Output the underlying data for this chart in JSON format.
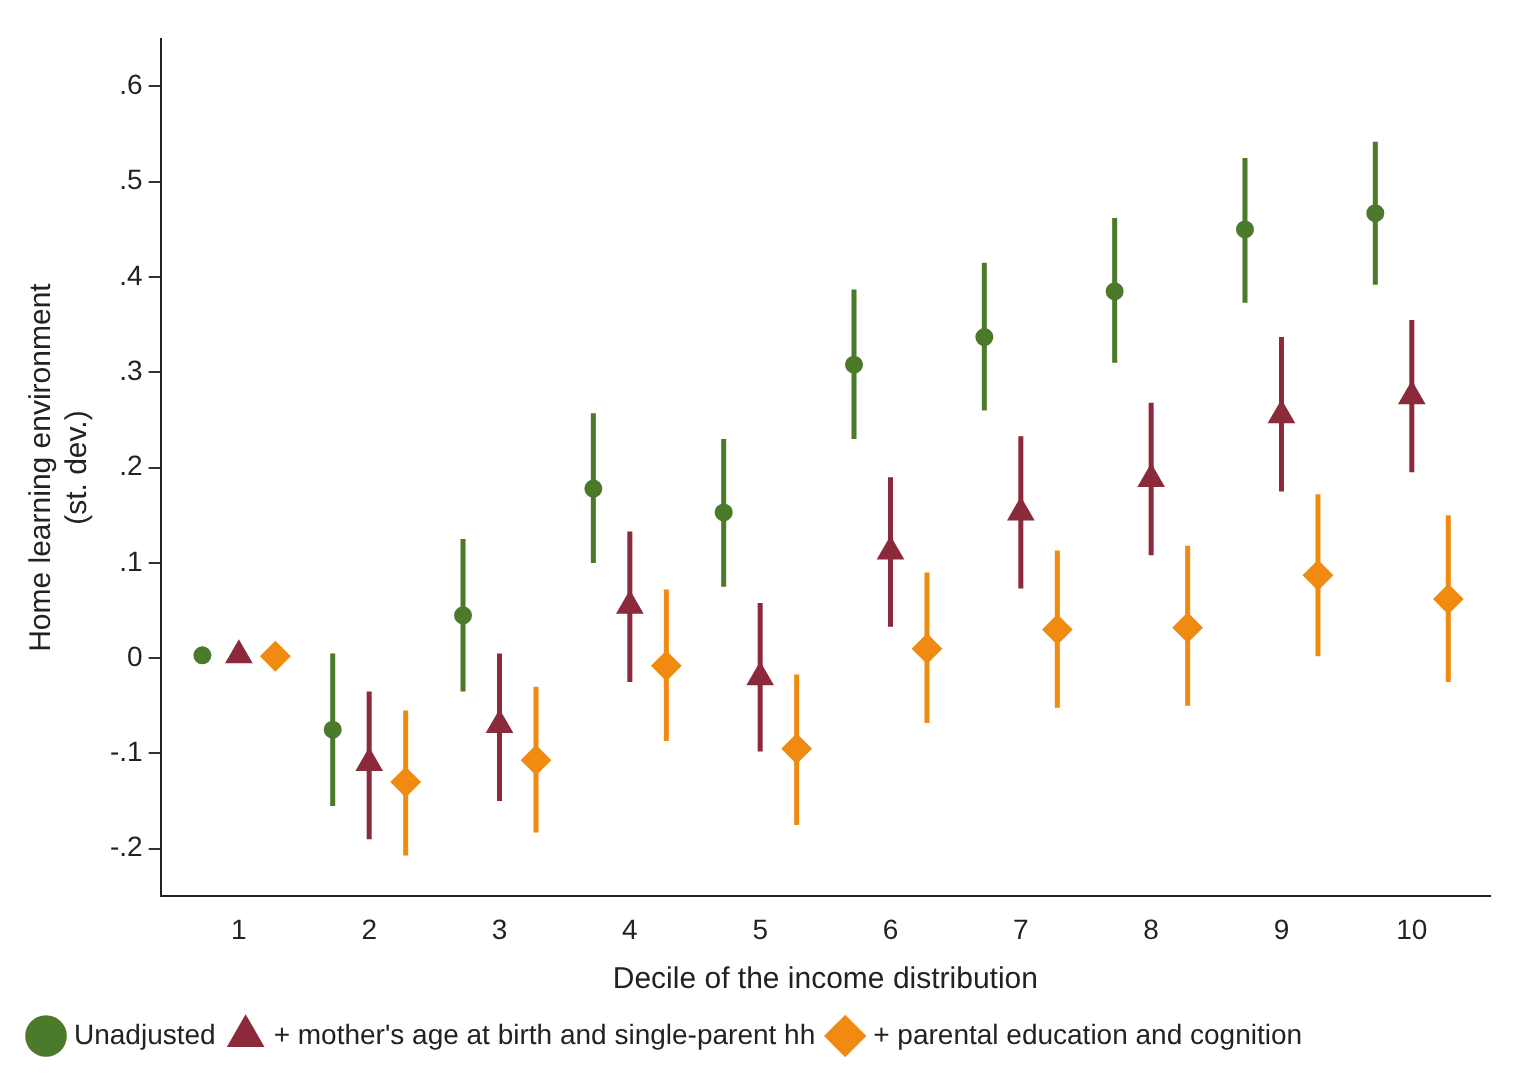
{
  "chart_data": {
    "type": "scatter",
    "xlabel": "Decile of the income distribution",
    "ylabel": "Home learning environment\n(st. dev.)",
    "xlim": [
      0.4,
      10.6
    ],
    "xticks": [
      1,
      2,
      3,
      4,
      5,
      6,
      7,
      8,
      9,
      10
    ],
    "ylim": [
      -0.25,
      0.65
    ],
    "yticks": [
      {
        "value": -0.2,
        "label": "-.2"
      },
      {
        "value": -0.1,
        "label": "-.1"
      },
      0,
      {
        "value": 0.1,
        "label": ".1"
      },
      {
        "value": 0.2,
        "label": ".2"
      },
      {
        "value": 0.3,
        "label": ".3"
      },
      {
        "value": 0.4,
        "label": ".4"
      },
      {
        "value": 0.5,
        "label": ".5"
      },
      {
        "value": 0.6,
        "label": ".6"
      }
    ],
    "grid": false,
    "legend": "bottom",
    "series": [
      {
        "name": "Unadjusted",
        "color": "#4a7a2a",
        "marker": "circle",
        "x": [
          0.72,
          1.72,
          2.72,
          3.72,
          4.72,
          5.72,
          6.72,
          7.72,
          8.72,
          9.72
        ],
        "values": [
          0.003,
          -0.075,
          0.045,
          0.178,
          0.153,
          0.308,
          0.337,
          0.385,
          0.45,
          0.467
        ],
        "errors": [
          null,
          [
            -0.155,
            0.005
          ],
          [
            -0.035,
            0.125
          ],
          [
            0.1,
            0.257
          ],
          [
            0.075,
            0.23
          ],
          [
            0.23,
            0.387
          ],
          [
            0.26,
            0.415
          ],
          [
            0.31,
            0.462
          ],
          [
            0.373,
            0.525
          ],
          [
            0.392,
            0.542
          ]
        ]
      },
      {
        "name": "+ mother's age at birth and single-parent hh",
        "color": "#8b2a3a",
        "marker": "triangle",
        "x": [
          1,
          2,
          3,
          4,
          5,
          6,
          7,
          8,
          9,
          10
        ],
        "values": [
          0.003,
          -0.11,
          -0.07,
          0.055,
          -0.02,
          0.112,
          0.153,
          0.188,
          0.255,
          0.275
        ],
        "errors": [
          null,
          [
            -0.19,
            -0.035
          ],
          [
            -0.15,
            0.005
          ],
          [
            -0.025,
            0.133
          ],
          [
            -0.098,
            0.058
          ],
          [
            0.033,
            0.19
          ],
          [
            0.073,
            0.233
          ],
          [
            0.108,
            0.268
          ],
          [
            0.175,
            0.337
          ],
          [
            0.195,
            0.355
          ]
        ]
      },
      {
        "name": "+ parental education and cognition",
        "color": "#f08a10",
        "marker": "diamond",
        "x": [
          1.28,
          2.28,
          3.28,
          4.28,
          5.28,
          6.28,
          7.28,
          8.28,
          9.28,
          10.28
        ],
        "values": [
          0.002,
          -0.13,
          -0.107,
          -0.008,
          -0.095,
          0.01,
          0.03,
          0.032,
          0.087,
          0.062
        ],
        "errors": [
          null,
          [
            -0.207,
            -0.055
          ],
          [
            -0.183,
            -0.03
          ],
          [
            -0.087,
            0.072
          ],
          [
            -0.175,
            -0.017
          ],
          [
            -0.068,
            0.09
          ],
          [
            -0.052,
            0.113
          ],
          [
            -0.05,
            0.118
          ],
          [
            0.002,
            0.172
          ],
          [
            -0.025,
            0.15
          ]
        ]
      }
    ]
  }
}
